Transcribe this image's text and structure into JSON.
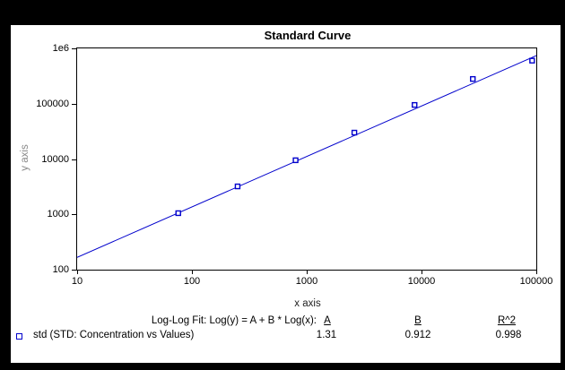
{
  "window": {
    "frame_color": "#000000",
    "panel_color": "#ffffff"
  },
  "colors": {
    "series_blue": "#0000CC",
    "axis_black": "#000000"
  },
  "chart": {
    "title": "Standard Curve",
    "x_axis_label": "x axis",
    "y_axis_label": "y axis"
  },
  "chart_data": {
    "type": "scatter",
    "title": "Standard Curve",
    "xlabel": "x axis",
    "ylabel": "y axis",
    "x_scale": "log",
    "y_scale": "log",
    "xlim": [
      10,
      100000
    ],
    "ylim": [
      100,
      1000000
    ],
    "grid": false,
    "x_ticks": [
      10,
      100,
      1000,
      10000,
      100000
    ],
    "x_tick_labels": [
      "10",
      "100",
      "1000",
      "10000",
      "100000"
    ],
    "y_ticks": [
      100,
      1000,
      10000,
      100000,
      1000000
    ],
    "y_tick_labels": [
      "100",
      "1000",
      "10000",
      "100000",
      "1e6"
    ],
    "series": [
      {
        "name": "std (STD: Concentration vs Values)",
        "marker": "open-square",
        "color": "#0000CC",
        "x": [
          76,
          250,
          800,
          2600,
          8700,
          28000,
          92000
        ],
        "y": [
          1050,
          3200,
          9500,
          30000,
          95000,
          280000,
          600000
        ]
      }
    ],
    "fit_line": {
      "model": "Log(y) = A + B * Log(x)",
      "A": 1.31,
      "B": 0.912,
      "R2": 0.998,
      "color": "#0000CC",
      "x_range": [
        10,
        100000
      ]
    },
    "legend_position": "bottom-left"
  },
  "fit_table": {
    "caption": "Log-Log Fit: Log(y) = A + B * Log(x):",
    "headers": [
      "A",
      "B",
      "R^2"
    ],
    "row_label": "std (STD: Concentration vs Values)",
    "values": [
      "1.31",
      "0.912",
      "0.998"
    ]
  }
}
